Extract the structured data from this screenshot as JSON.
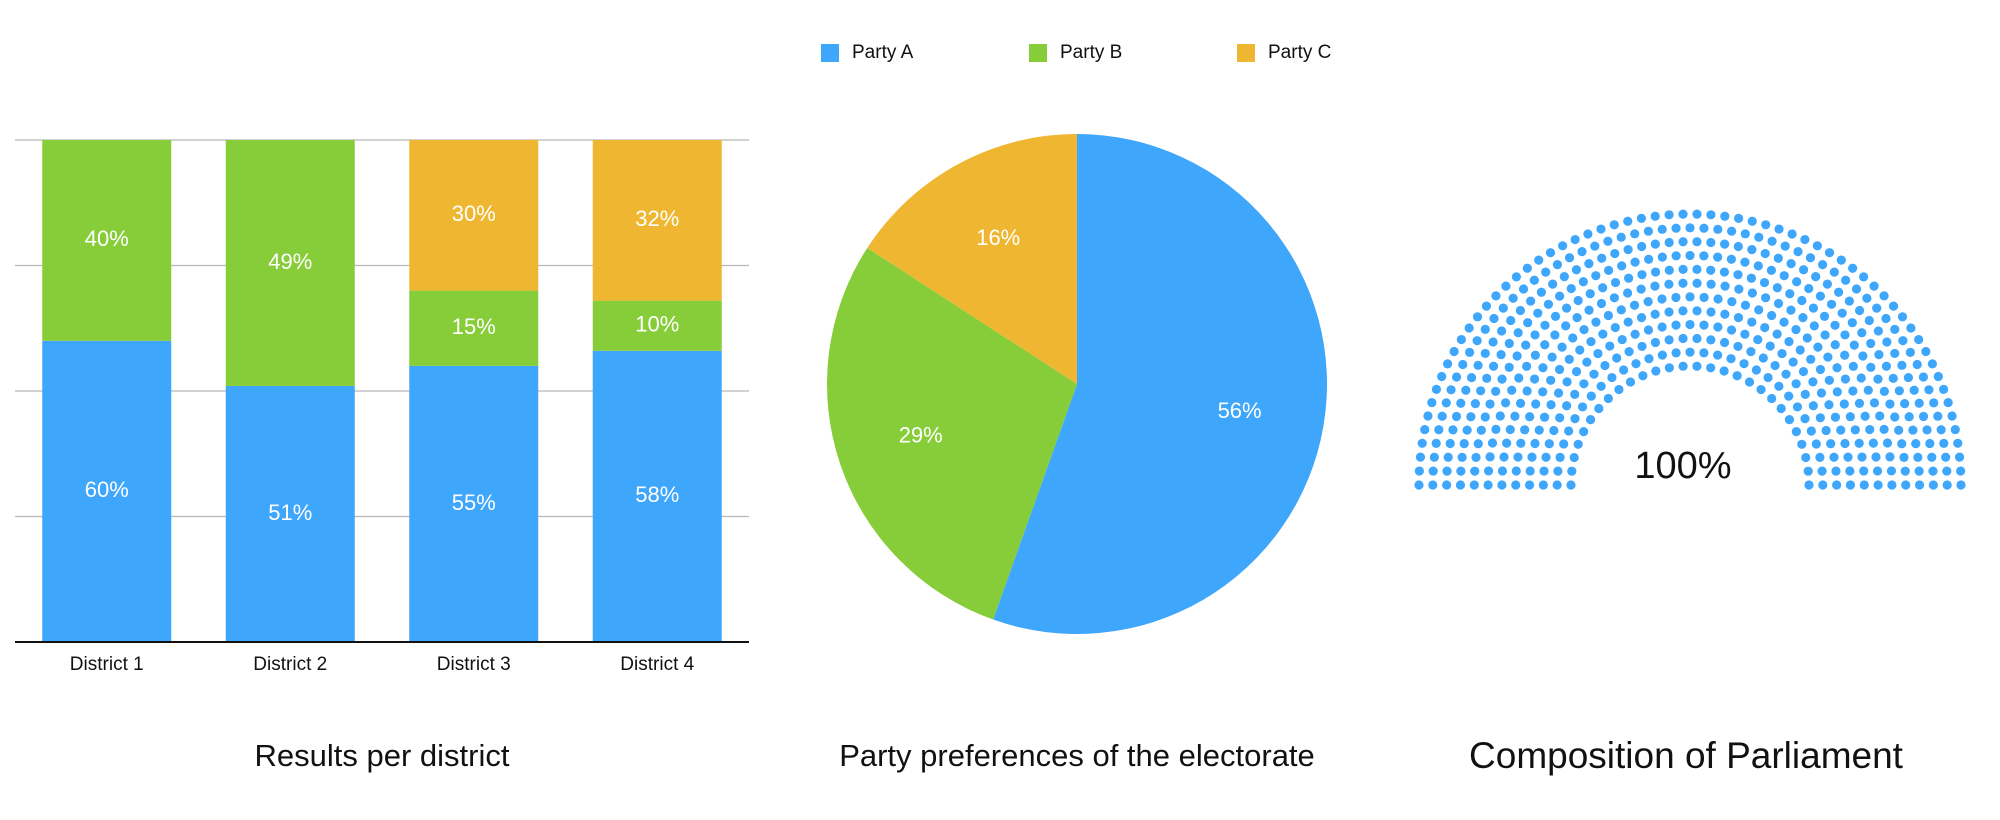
{
  "chart_data": [
    {
      "type": "bar",
      "stacked": true,
      "title": "Results per district",
      "categories": [
        "District 1",
        "District 2",
        "District 3",
        "District 4"
      ],
      "series": [
        {
          "name": "Party A",
          "color": "#3ea6fb",
          "values": [
            60,
            51,
            55,
            58
          ],
          "value_labels": [
            "60%",
            "51%",
            "55%",
            "58%"
          ]
        },
        {
          "name": "Party B",
          "color": "#87cd39",
          "values": [
            40,
            49,
            15,
            10
          ],
          "value_labels": [
            "40%",
            "49%",
            "15%",
            "10%"
          ]
        },
        {
          "name": "Party C",
          "color": "#efb731",
          "values": [
            null,
            null,
            30,
            32
          ],
          "value_labels": [
            null,
            null,
            "30%",
            "32%"
          ]
        }
      ],
      "ylim": [
        0,
        100
      ],
      "yticks": [
        0,
        25,
        50,
        75,
        100
      ],
      "grid": true
    },
    {
      "type": "pie",
      "title": "Party preferences of the electorate",
      "values": [
        56,
        29,
        16
      ],
      "value_labels": [
        "56%",
        "29%",
        "16%"
      ],
      "colors": [
        "#3ea6fb",
        "#87cd39",
        "#efb731"
      ]
    },
    {
      "type": "parliament",
      "title": "Composition of Parliament",
      "values": [
        100
      ],
      "value_labels": [
        "100%"
      ],
      "colors": [
        "#3ea6fb"
      ]
    }
  ]
}
